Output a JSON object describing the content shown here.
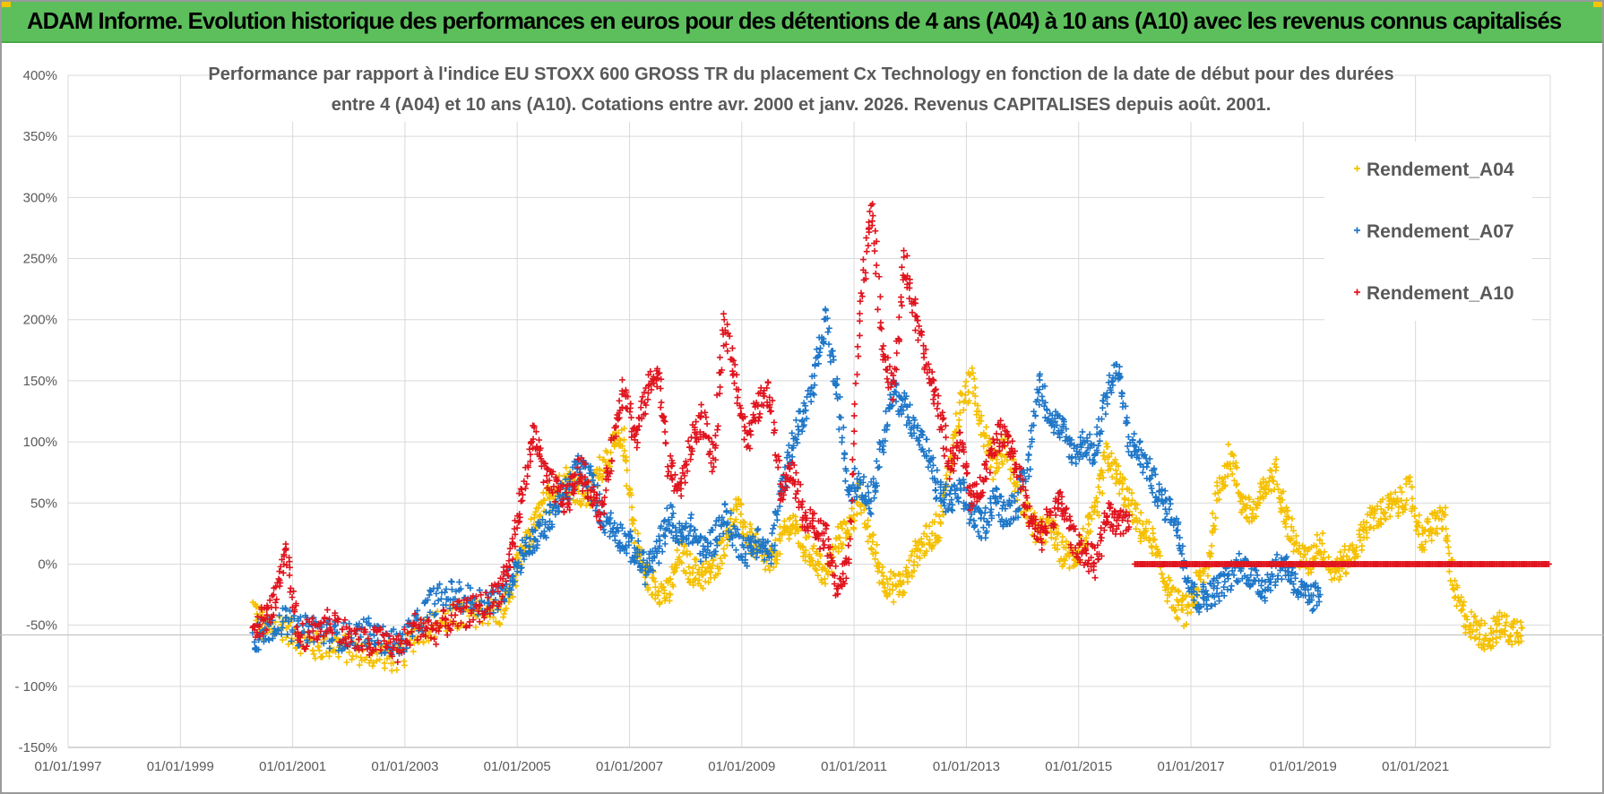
{
  "header": {
    "title": "ADAM Informe. Evolution historique des performances en euros pour des détentions de 4 ans (A04) à 10 ans (A10) avec les revenus connus capitalisés"
  },
  "chart_data": {
    "type": "scatter",
    "title_line1": "Performance par rapport à l'indice EU STOXX 600 GROSS TR  du placement Cx Technology  en fonction de la date de début pour des durées",
    "title_line2": "entre 4 (A04) et 10 ans (A10). Cotations entre avr. 2000 et janv. 2026. Revenus CAPITALISES depuis août. 2001.",
    "xlabel": "",
    "ylabel": "",
    "x_tick_labels": [
      "01/01/1997",
      "01/01/1999",
      "01/01/2001",
      "01/01/2003",
      "01/01/2005",
      "01/01/2007",
      "01/01/2009",
      "01/01/2011",
      "01/01/2013",
      "01/01/2015",
      "01/01/2017",
      "01/01/2019",
      "01/01/2021"
    ],
    "y_tick_labels": [
      "400%",
      "350%",
      "300%",
      "250%",
      "200%",
      "150%",
      "100%",
      "50%",
      "0%",
      "-50%",
      "- 100%",
      "-150%"
    ],
    "ylim": [
      -150,
      400
    ],
    "xlim": [
      1997.0,
      2023.4
    ],
    "grid": true,
    "legend_position": "top-right",
    "series": [
      {
        "name": "Rendement_A04",
        "color": "#f5c000",
        "points": [
          [
            2000.3,
            -35
          ],
          [
            2000.5,
            -55
          ],
          [
            2000.8,
            -50
          ],
          [
            2001.1,
            -60
          ],
          [
            2001.4,
            -68
          ],
          [
            2001.7,
            -65
          ],
          [
            2002.0,
            -70
          ],
          [
            2002.3,
            -72
          ],
          [
            2002.6,
            -74
          ],
          [
            2002.9,
            -78
          ],
          [
            2003.2,
            -55
          ],
          [
            2003.5,
            -50
          ],
          [
            2003.8,
            -45
          ],
          [
            2004.1,
            -42
          ],
          [
            2004.4,
            -38
          ],
          [
            2004.7,
            -40
          ],
          [
            2004.9,
            -20
          ],
          [
            2005.1,
            10
          ],
          [
            2005.3,
            30
          ],
          [
            2005.5,
            50
          ],
          [
            2005.7,
            60
          ],
          [
            2005.9,
            70
          ],
          [
            2006.1,
            60
          ],
          [
            2006.3,
            55
          ],
          [
            2006.5,
            80
          ],
          [
            2006.7,
            95
          ],
          [
            2006.9,
            100
          ],
          [
            2007.1,
            20
          ],
          [
            2007.3,
            -10
          ],
          [
            2007.5,
            -20
          ],
          [
            2007.7,
            -25
          ],
          [
            2007.9,
            10
          ],
          [
            2008.1,
            -5
          ],
          [
            2008.3,
            -10
          ],
          [
            2008.5,
            -5
          ],
          [
            2008.7,
            20
          ],
          [
            2008.9,
            45
          ],
          [
            2009.1,
            25
          ],
          [
            2009.3,
            10
          ],
          [
            2009.5,
            0
          ],
          [
            2009.7,
            20
          ],
          [
            2009.9,
            35
          ],
          [
            2010.1,
            15
          ],
          [
            2010.3,
            5
          ],
          [
            2010.5,
            -10
          ],
          [
            2010.7,
            20
          ],
          [
            2010.9,
            30
          ],
          [
            2011.1,
            55
          ],
          [
            2011.3,
            20
          ],
          [
            2011.5,
            -10
          ],
          [
            2011.7,
            -20
          ],
          [
            2011.9,
            -15
          ],
          [
            2012.1,
            10
          ],
          [
            2012.3,
            20
          ],
          [
            2012.5,
            30
          ],
          [
            2012.7,
            80
          ],
          [
            2012.9,
            130
          ],
          [
            2013.1,
            150
          ],
          [
            2013.3,
            110
          ],
          [
            2013.5,
            80
          ],
          [
            2013.7,
            100
          ],
          [
            2013.9,
            60
          ],
          [
            2014.1,
            40
          ],
          [
            2014.3,
            25
          ],
          [
            2014.5,
            30
          ],
          [
            2014.7,
            10
          ],
          [
            2014.9,
            5
          ],
          [
            2015.1,
            20
          ],
          [
            2015.3,
            40
          ],
          [
            2015.5,
            90
          ],
          [
            2015.7,
            70
          ],
          [
            2015.9,
            50
          ],
          [
            2016.1,
            30
          ],
          [
            2016.3,
            20
          ],
          [
            2016.5,
            -10
          ],
          [
            2016.7,
            -30
          ],
          [
            2016.9,
            -40
          ],
          [
            2017.1,
            -20
          ],
          [
            2017.3,
            0
          ],
          [
            2017.5,
            60
          ],
          [
            2017.7,
            90
          ],
          [
            2017.9,
            50
          ],
          [
            2018.1,
            40
          ],
          [
            2018.3,
            60
          ],
          [
            2018.5,
            75
          ],
          [
            2018.7,
            40
          ],
          [
            2018.9,
            10
          ],
          [
            2019.1,
            0
          ],
          [
            2019.3,
            20
          ],
          [
            2019.5,
            -5
          ],
          [
            2019.7,
            0
          ],
          [
            2019.9,
            10
          ],
          [
            2020.1,
            30
          ],
          [
            2020.3,
            40
          ],
          [
            2020.5,
            45
          ],
          [
            2020.7,
            50
          ],
          [
            2020.9,
            60
          ],
          [
            2021.1,
            20
          ],
          [
            2021.3,
            30
          ],
          [
            2021.5,
            40
          ],
          [
            2021.7,
            -25
          ],
          [
            2021.9,
            -45
          ],
          [
            2022.1,
            -55
          ],
          [
            2022.3,
            -60
          ],
          [
            2022.5,
            -50
          ],
          [
            2022.7,
            -55
          ],
          [
            2022.9,
            -52
          ]
        ]
      },
      {
        "name": "Rendement_A07",
        "color": "#1f77c8",
        "points": [
          [
            2000.3,
            -62
          ],
          [
            2000.5,
            -55
          ],
          [
            2000.8,
            -45
          ],
          [
            2001.1,
            -55
          ],
          [
            2001.4,
            -52
          ],
          [
            2001.7,
            -58
          ],
          [
            2002.0,
            -60
          ],
          [
            2002.3,
            -55
          ],
          [
            2002.6,
            -62
          ],
          [
            2002.9,
            -65
          ],
          [
            2003.2,
            -50
          ],
          [
            2003.5,
            -30
          ],
          [
            2003.8,
            -25
          ],
          [
            2004.1,
            -28
          ],
          [
            2004.4,
            -30
          ],
          [
            2004.7,
            -28
          ],
          [
            2004.9,
            -10
          ],
          [
            2005.1,
            10
          ],
          [
            2005.3,
            20
          ],
          [
            2005.5,
            30
          ],
          [
            2005.7,
            50
          ],
          [
            2005.9,
            60
          ],
          [
            2006.1,
            80
          ],
          [
            2006.3,
            70
          ],
          [
            2006.5,
            40
          ],
          [
            2006.7,
            30
          ],
          [
            2006.9,
            20
          ],
          [
            2007.1,
            10
          ],
          [
            2007.3,
            -5
          ],
          [
            2007.5,
            10
          ],
          [
            2007.7,
            40
          ],
          [
            2007.9,
            20
          ],
          [
            2008.1,
            30
          ],
          [
            2008.3,
            10
          ],
          [
            2008.5,
            20
          ],
          [
            2008.7,
            40
          ],
          [
            2008.9,
            20
          ],
          [
            2009.1,
            10
          ],
          [
            2009.3,
            20
          ],
          [
            2009.5,
            5
          ],
          [
            2009.7,
            60
          ],
          [
            2009.9,
            100
          ],
          [
            2010.1,
            120
          ],
          [
            2010.3,
            150
          ],
          [
            2010.5,
            200
          ],
          [
            2010.7,
            140
          ],
          [
            2010.9,
            60
          ],
          [
            2011.1,
            70
          ],
          [
            2011.3,
            50
          ],
          [
            2011.5,
            100
          ],
          [
            2011.7,
            140
          ],
          [
            2011.9,
            130
          ],
          [
            2012.1,
            110
          ],
          [
            2012.3,
            90
          ],
          [
            2012.5,
            60
          ],
          [
            2012.7,
            50
          ],
          [
            2012.9,
            60
          ],
          [
            2013.1,
            40
          ],
          [
            2013.3,
            30
          ],
          [
            2013.5,
            55
          ],
          [
            2013.7,
            40
          ],
          [
            2013.9,
            50
          ],
          [
            2014.1,
            80
          ],
          [
            2014.3,
            150
          ],
          [
            2014.5,
            120
          ],
          [
            2014.7,
            110
          ],
          [
            2014.9,
            90
          ],
          [
            2015.1,
            100
          ],
          [
            2015.3,
            90
          ],
          [
            2015.5,
            140
          ],
          [
            2015.7,
            160
          ],
          [
            2015.9,
            100
          ],
          [
            2016.1,
            90
          ],
          [
            2016.3,
            70
          ],
          [
            2016.5,
            50
          ],
          [
            2016.7,
            40
          ],
          [
            2016.9,
            0
          ],
          [
            2017.1,
            -30
          ],
          [
            2017.3,
            -25
          ],
          [
            2017.5,
            -20
          ],
          [
            2017.7,
            -10
          ],
          [
            2017.9,
            0
          ],
          [
            2018.1,
            -10
          ],
          [
            2018.3,
            -20
          ],
          [
            2018.5,
            -5
          ],
          [
            2018.7,
            0
          ],
          [
            2018.9,
            -20
          ],
          [
            2019.1,
            -30
          ],
          [
            2019.3,
            -25
          ]
        ]
      },
      {
        "name": "Rendement_A10",
        "color": "#e0141e",
        "points": [
          [
            2000.3,
            -50
          ],
          [
            2000.5,
            -45
          ],
          [
            2000.7,
            -30
          ],
          [
            2000.9,
            10
          ],
          [
            2001.1,
            -60
          ],
          [
            2001.4,
            -55
          ],
          [
            2001.7,
            -45
          ],
          [
            2002.0,
            -60
          ],
          [
            2002.3,
            -65
          ],
          [
            2002.6,
            -62
          ],
          [
            2002.9,
            -70
          ],
          [
            2003.2,
            -50
          ],
          [
            2003.5,
            -55
          ],
          [
            2003.8,
            -45
          ],
          [
            2004.1,
            -40
          ],
          [
            2004.4,
            -35
          ],
          [
            2004.7,
            -20
          ],
          [
            2004.9,
            10
          ],
          [
            2005.1,
            60
          ],
          [
            2005.3,
            110
          ],
          [
            2005.5,
            70
          ],
          [
            2005.7,
            60
          ],
          [
            2005.9,
            50
          ],
          [
            2006.1,
            80
          ],
          [
            2006.3,
            60
          ],
          [
            2006.5,
            40
          ],
          [
            2006.7,
            100
          ],
          [
            2006.9,
            150
          ],
          [
            2007.1,
            100
          ],
          [
            2007.3,
            140
          ],
          [
            2007.5,
            160
          ],
          [
            2007.7,
            80
          ],
          [
            2007.9,
            60
          ],
          [
            2008.1,
            100
          ],
          [
            2008.3,
            120
          ],
          [
            2008.5,
            80
          ],
          [
            2008.7,
            200
          ],
          [
            2008.9,
            150
          ],
          [
            2009.1,
            100
          ],
          [
            2009.3,
            130
          ],
          [
            2009.5,
            140
          ],
          [
            2009.7,
            60
          ],
          [
            2009.9,
            80
          ],
          [
            2010.1,
            40
          ],
          [
            2010.3,
            30
          ],
          [
            2010.5,
            20
          ],
          [
            2010.7,
            -20
          ],
          [
            2010.9,
            0
          ],
          [
            2011.1,
            200
          ],
          [
            2011.3,
            300
          ],
          [
            2011.5,
            180
          ],
          [
            2011.7,
            140
          ],
          [
            2011.9,
            250
          ],
          [
            2012.1,
            200
          ],
          [
            2012.3,
            160
          ],
          [
            2012.5,
            130
          ],
          [
            2012.7,
            80
          ],
          [
            2012.9,
            100
          ],
          [
            2013.1,
            50
          ],
          [
            2013.3,
            70
          ],
          [
            2013.5,
            100
          ],
          [
            2013.7,
            110
          ],
          [
            2013.9,
            80
          ],
          [
            2014.1,
            40
          ],
          [
            2014.3,
            20
          ],
          [
            2014.5,
            40
          ],
          [
            2014.7,
            50
          ],
          [
            2014.9,
            20
          ],
          [
            2015.1,
            10
          ],
          [
            2015.3,
            0
          ],
          [
            2015.5,
            40
          ],
          [
            2015.7,
            30
          ],
          [
            2015.9,
            40
          ]
        ]
      }
    ],
    "flat_series_note": "",
    "flat_from": 2016.0,
    "flat_to": 2023.4,
    "flat_value": 0,
    "flat_series": "Rendement_A10"
  }
}
